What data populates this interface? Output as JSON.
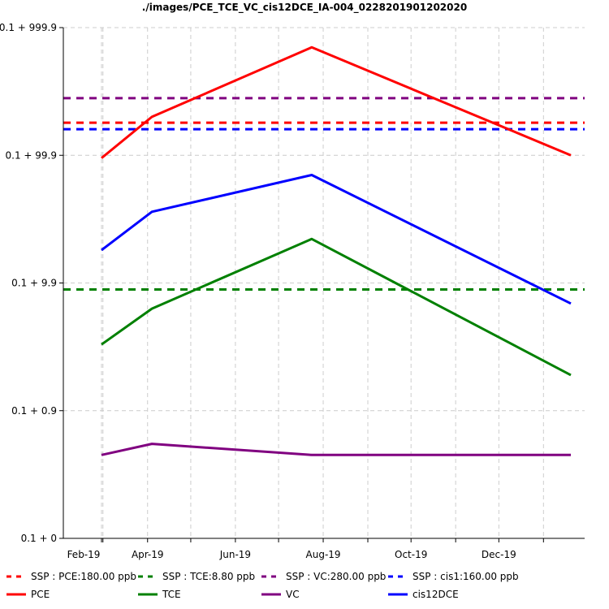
{
  "chart_data": {
    "type": "line",
    "title": "./images/PCE_TCE_VC_cis12DCE_IA-004_02282019​01202020",
    "xlabel": "",
    "ylabel": "",
    "y_scale": "log (offset by 0.1)",
    "grid": true,
    "legend_position": "bottom",
    "x_tick_labels": [
      "Feb-19",
      "Apr-19",
      "Jun-19",
      "Aug-19",
      "Oct-19",
      "Dec-19"
    ],
    "y_tick_labels": [
      "0.1 + 0",
      "0.1 + 0.9",
      "0.1 + 9.9",
      "0.1 + 99.9",
      "0.1 + 999.9"
    ],
    "sample_dates": [
      "2019-02-28",
      "2019-04-04",
      "2019-07-24",
      "2020-01-20"
    ],
    "series": [
      {
        "name": "PCE",
        "color": "#ff0000",
        "values": [
          95,
          200,
          700,
          100
        ]
      },
      {
        "name": "TCE",
        "color": "#008000",
        "values": [
          3.2,
          6.2,
          22,
          1.8
        ]
      },
      {
        "name": "VC",
        "color": "#800080",
        "values": [
          0.35,
          0.45,
          0.35,
          0.35
        ]
      },
      {
        "name": "cis12DCE",
        "color": "#0000ff",
        "values": [
          18,
          36,
          70,
          6.8
        ]
      }
    ],
    "thresholds": [
      {
        "name": "SSP : PCE:180.00 ppb",
        "color": "#ff0000",
        "value": 180
      },
      {
        "name": "SSP : TCE:8.80 ppb",
        "color": "#008000",
        "value": 8.8
      },
      {
        "name": "SSP : VC:280.00 ppb",
        "color": "#800080",
        "value": 280
      },
      {
        "name": "SSP : cis1:160.00 ppb",
        "color": "#0000ff",
        "value": 160
      }
    ],
    "legend_order": [
      "SSP : PCE:180.00 ppb",
      "SSP : TCE:8.80 ppb",
      "SSP : VC:280.00 ppb",
      "SSP : cis1:160.00 ppb",
      "PCE",
      "TCE",
      "VC",
      "cis12DCE"
    ]
  }
}
